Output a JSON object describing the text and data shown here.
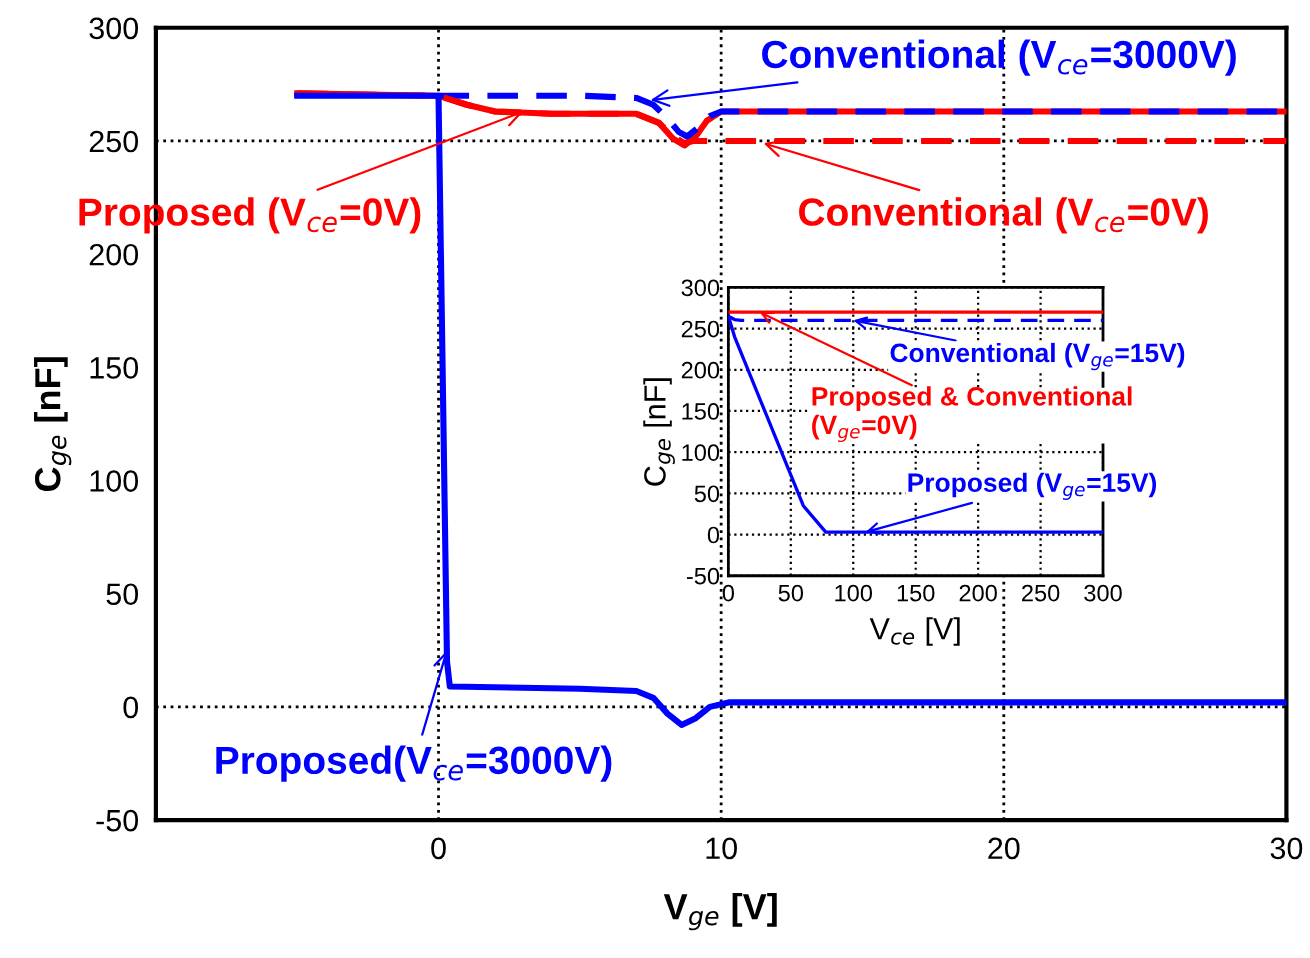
{
  "chart_data": [
    {
      "type": "line",
      "xlabel": "V$_{ge}$ [V]",
      "ylabel": "C$_{ge}$ [nF]",
      "xlim": [
        -10,
        30
      ],
      "ylim": [
        -50,
        300
      ],
      "xticks": [
        0,
        10,
        20,
        30
      ],
      "yticks": [
        -50,
        0,
        50,
        100,
        150,
        200,
        250,
        300
      ],
      "grid": "x",
      "ref_lines": [
        {
          "axis": "y",
          "value": 0,
          "line_style": "dotted",
          "color": "#000000"
        },
        {
          "axis": "y",
          "value": 250,
          "line_style": "dotted",
          "color": "#000000"
        }
      ],
      "series": [
        {
          "color": "#ff0000",
          "line_style": "solid",
          "x": [
            -5,
            0,
            1,
            2,
            4,
            7,
            7.8,
            8.3,
            8.7,
            9.1,
            9.5,
            10,
            30
          ],
          "values": [
            271,
            270,
            266,
            263,
            262,
            262,
            258,
            251,
            248,
            252,
            259,
            263,
            263
          ]
        },
        {
          "color": "#0000ff",
          "line_style": "dashed",
          "x": [
            0,
            5,
            7,
            7.6,
            8.1,
            8.5,
            8.8,
            9.2,
            9.6,
            10,
            12,
            30
          ],
          "values": [
            270,
            270,
            269,
            266,
            260,
            254,
            252,
            256,
            261,
            263,
            263,
            263
          ]
        },
        {
          "color": "#ff0000",
          "line_style": "dashed",
          "x": [
            -5,
            0,
            1,
            2,
            4,
            7,
            7.8,
            8.3,
            8.7,
            9,
            9.5,
            12,
            30
          ],
          "values": [
            271,
            270,
            266,
            263,
            262,
            262,
            258,
            252,
            249,
            250,
            250,
            250,
            250
          ]
        },
        {
          "color": "#0000ff",
          "line_style": "solid",
          "x": [
            -5,
            0,
            0.3,
            0.4,
            5,
            7,
            7.6,
            8.1,
            8.6,
            9.1,
            9.6,
            10.3,
            12,
            30
          ],
          "values": [
            270,
            270,
            20,
            9,
            8,
            7,
            4,
            -3,
            -8,
            -5,
            0,
            2,
            2,
            2
          ]
        }
      ],
      "annotations": [
        {
          "text": "Proposed (V$_{ce}$=0V)",
          "x": 3,
          "y": 263
        },
        {
          "text": "Conventional (V$_{ce}$=3000V)",
          "x": 7.5,
          "y": 268
        },
        {
          "text": "Conventional (V$_{ce}$=0V)",
          "x": 11.5,
          "y": 249
        },
        {
          "text": "Proposed(V$_{ce}$=3000V)",
          "x": 0.3,
          "y": 25
        }
      ]
    },
    {
      "type": "line",
      "xlabel": "V$_{ce}$ [V]",
      "ylabel": "C$_{ge}$ [nF]",
      "xlim": [
        0,
        300
      ],
      "ylim": [
        -50,
        300
      ],
      "xticks": [
        0,
        50,
        100,
        150,
        200,
        250,
        300
      ],
      "yticks": [
        -50,
        0,
        50,
        100,
        150,
        200,
        250,
        300
      ],
      "grid": true,
      "series": [
        {
          "color": "#ff0000",
          "line_style": "solid",
          "x": [
            0,
            300
          ],
          "values": [
            270,
            270
          ]
        },
        {
          "color": "#0000ff",
          "line_style": "dashed",
          "x": [
            0,
            5,
            10,
            300
          ],
          "values": [
            265,
            261,
            260,
            260
          ]
        },
        {
          "color": "#0000ff",
          "line_style": "solid",
          "x": [
            0,
            5,
            60,
            78,
            300
          ],
          "values": [
            265,
            240,
            35,
            3,
            3
          ]
        }
      ],
      "annotations": [
        {
          "text": "Proposed & Conventional\n(V$_{ge}$=0V)",
          "x": 25,
          "y": 270
        },
        {
          "text": "Conventional (V$_{ge}$=15V)",
          "x": 100,
          "y": 260
        },
        {
          "text": "Proposed (V$_{ge}$=15V)",
          "x": 110,
          "y": 3
        }
      ]
    }
  ]
}
